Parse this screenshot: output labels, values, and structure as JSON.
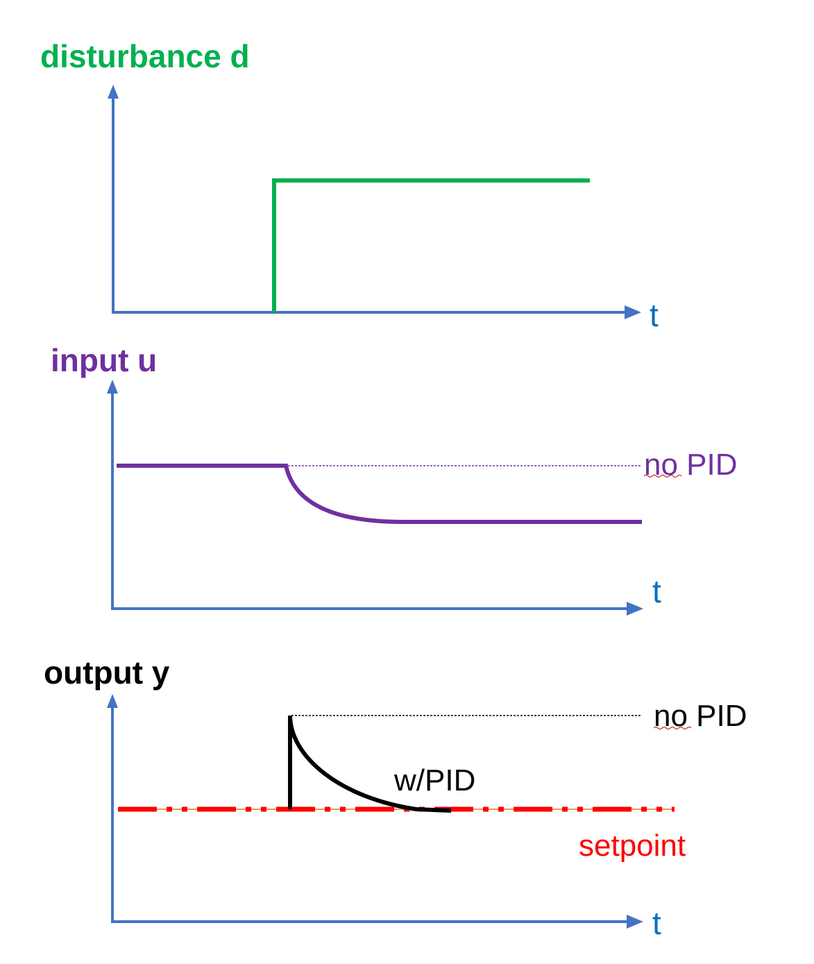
{
  "colors": {
    "axis": "#4472C4",
    "disturbance": "#00B050",
    "input": "#7030A0",
    "output": "#000000",
    "setpoint": "#FF0000",
    "setpoint_thin": "#E87722",
    "label_blue": "#0070C0"
  },
  "panel_disturbance": {
    "title": "disturbance d",
    "t_label": "t"
  },
  "panel_input": {
    "title": "input u",
    "t_label": "t",
    "no_pid_label": "no PID"
  },
  "panel_output": {
    "title": "output y",
    "t_label": "t",
    "no_pid_label": "no PID",
    "w_pid_label": "w/PID",
    "setpoint_label": "setpoint"
  }
}
